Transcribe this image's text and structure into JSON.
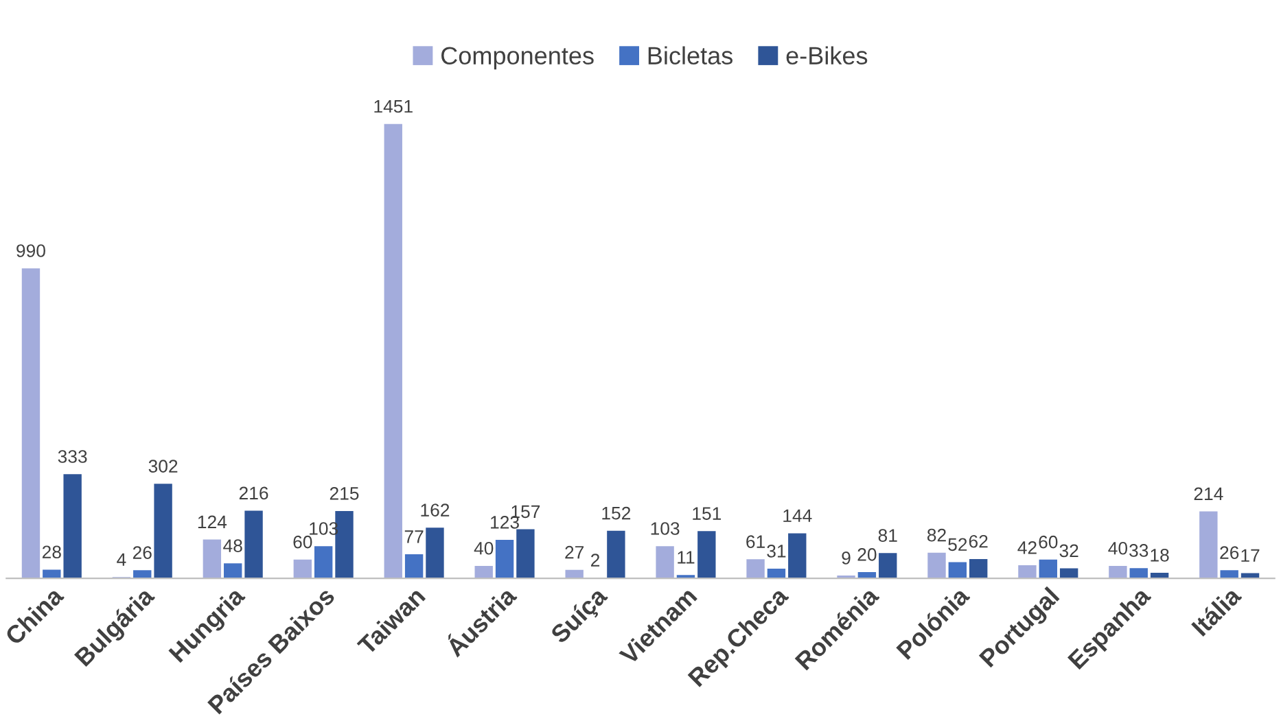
{
  "chart_data": {
    "type": "bar",
    "categories": [
      "China",
      "Bulgária",
      "Hungria",
      "Países Baixos",
      "Taiwan",
      "Áustria",
      "Suíça",
      "Vietnam",
      "Rep.Checa",
      "Roménia",
      "Polónia",
      "Portugal",
      "Espanha",
      "Itália"
    ],
    "series": [
      {
        "name": "Componentes",
        "color": "#a3acdc",
        "values": [
          990,
          4,
          124,
          60,
          1451,
          40,
          27,
          103,
          61,
          9,
          82,
          42,
          40,
          214
        ]
      },
      {
        "name": "Bicletas",
        "color": "#4472c4",
        "values": [
          28,
          26,
          48,
          103,
          77,
          123,
          2,
          11,
          31,
          20,
          52,
          60,
          33,
          26
        ]
      },
      {
        "name": "e-Bikes",
        "color": "#2f5597",
        "values": [
          333,
          302,
          216,
          215,
          162,
          157,
          152,
          151,
          144,
          81,
          62,
          32,
          18,
          17
        ]
      }
    ],
    "data_labels": true,
    "legend": "top",
    "grid": false
  }
}
